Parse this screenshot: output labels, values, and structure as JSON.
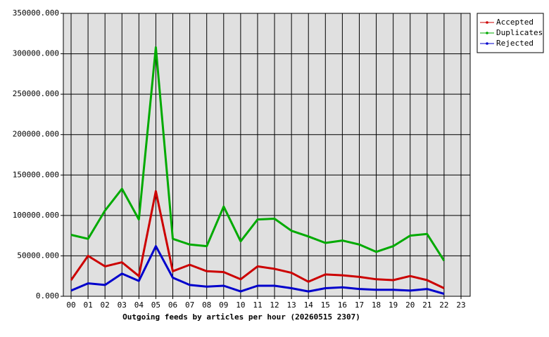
{
  "chart_data": {
    "type": "line",
    "x_label": "Outgoing feeds by articles per hour (20260515 2307)",
    "categories": [
      "00",
      "01",
      "02",
      "03",
      "04",
      "05",
      "06",
      "07",
      "08",
      "09",
      "10",
      "11",
      "12",
      "13",
      "14",
      "15",
      "16",
      "17",
      "18",
      "19",
      "20",
      "21",
      "22",
      "23"
    ],
    "series": [
      {
        "name": "Accepted",
        "color": "#cc0000",
        "values": [
          20000,
          50000,
          37000,
          42000,
          25000,
          130000,
          31000,
          39000,
          31000,
          30000,
          21000,
          37000,
          34000,
          29000,
          18000,
          27000,
          26000,
          24000,
          21000,
          20000,
          25000,
          20000,
          10000,
          null
        ]
      },
      {
        "name": "Duplicates",
        "color": "#00aa00",
        "values": [
          76000,
          71000,
          106000,
          133000,
          95000,
          308000,
          71000,
          64000,
          62000,
          111000,
          68000,
          95000,
          96000,
          81000,
          74000,
          66000,
          69000,
          64000,
          55000,
          62000,
          75000,
          77000,
          44000,
          null
        ]
      },
      {
        "name": "Rejected",
        "color": "#0000cc",
        "values": [
          7000,
          16000,
          14000,
          28000,
          19000,
          62000,
          23000,
          14000,
          12000,
          13000,
          6000,
          13000,
          13000,
          10000,
          6000,
          10000,
          11000,
          9000,
          8000,
          8000,
          7000,
          9000,
          3000,
          null
        ]
      }
    ],
    "ylim": [
      0,
      350000
    ],
    "yticks": [
      {
        "value": 0,
        "label": "0.000"
      },
      {
        "value": 50000,
        "label": "50000.000"
      },
      {
        "value": 100000,
        "label": "100000.000"
      },
      {
        "value": 150000,
        "label": "150000.000"
      },
      {
        "value": 200000,
        "label": "200000.000"
      },
      {
        "value": 250000,
        "label": "250000.000"
      },
      {
        "value": 300000,
        "label": "300000.000"
      },
      {
        "value": 350000,
        "label": "350000.000"
      }
    ],
    "grid": true,
    "legend": "right",
    "plot_background": "#e0e0e0"
  }
}
